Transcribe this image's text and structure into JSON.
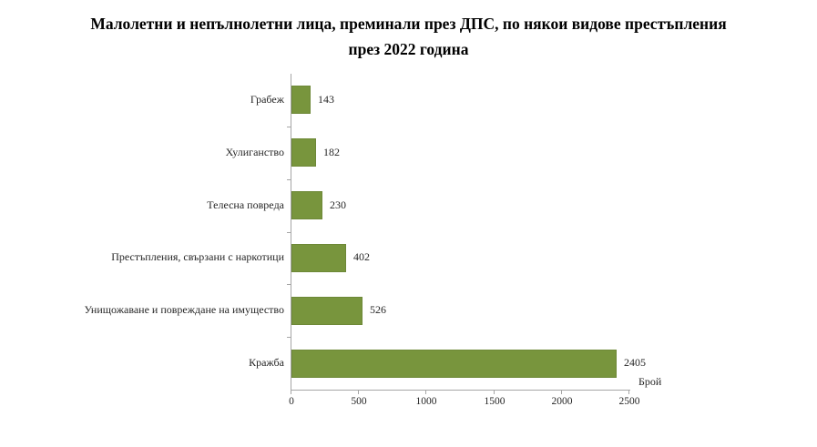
{
  "chart_data": {
    "type": "bar",
    "orientation": "horizontal",
    "title": "Малолетни и непълнолетни лица, преминали през ДПС, по някои видове престъпления през 2022 година",
    "title_lines": [
      "Малолетни и непълнолетни лица, преминали през ДПС, по някои видове престъпления",
      "през 2022 година"
    ],
    "categories": [
      "Грабеж",
      "Хулиганство",
      "Телесна поврeда",
      "Престъпления, свързани с наркотици",
      "Унищожаване и повреждане на имущество",
      "Кражба"
    ],
    "values": [
      143,
      182,
      230,
      402,
      526,
      2405
    ],
    "data_labels": [
      143,
      182,
      230,
      402,
      526,
      2405
    ],
    "xlabel": "Брой",
    "ylabel": "",
    "xlim": [
      0,
      2500
    ],
    "xticks": [
      0,
      500,
      1000,
      1500,
      2000,
      2500
    ],
    "grid": false,
    "legend": "none",
    "bar_color": "#78953d",
    "bar_border_color": "#6d8837",
    "axis_color": "#a6a6a6",
    "text_color": "#262626",
    "title_color": "#000000",
    "background_color": "#ffffff"
  }
}
